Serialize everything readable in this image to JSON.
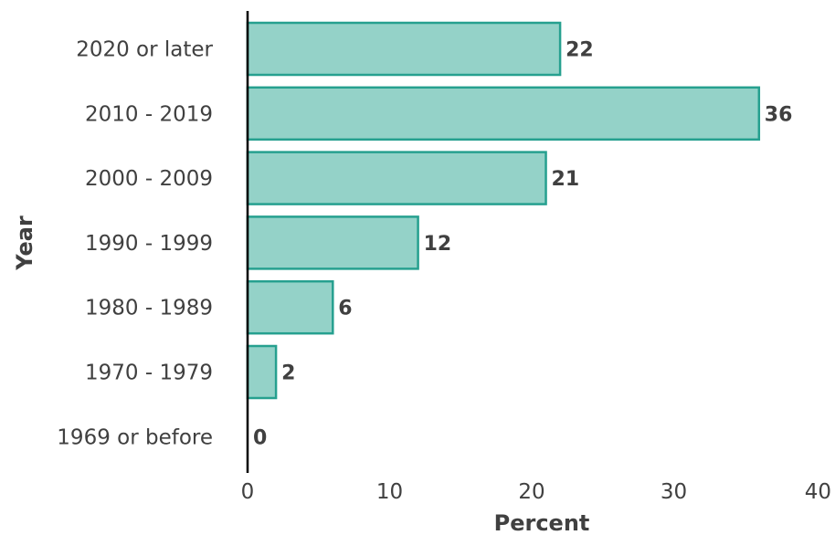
{
  "chart_data": {
    "type": "bar",
    "orientation": "horizontal",
    "categories": [
      "2020 or later",
      "2010 - 2019",
      "2000 - 2009",
      "1990 - 1999",
      "1980 - 1989",
      "1970 - 1979",
      "1969 or before"
    ],
    "values": [
      22,
      36,
      21,
      12,
      6,
      2,
      0
    ],
    "xlabel": "Percent",
    "ylabel": "Year",
    "xlim": [
      0,
      40
    ],
    "xticks": [
      0,
      10,
      20,
      30,
      40
    ],
    "grid": false,
    "colors": {
      "bar_fill": "#94d2c8",
      "bar_stroke": "#26a08f",
      "axis": "#000000",
      "text": "#404040"
    }
  }
}
